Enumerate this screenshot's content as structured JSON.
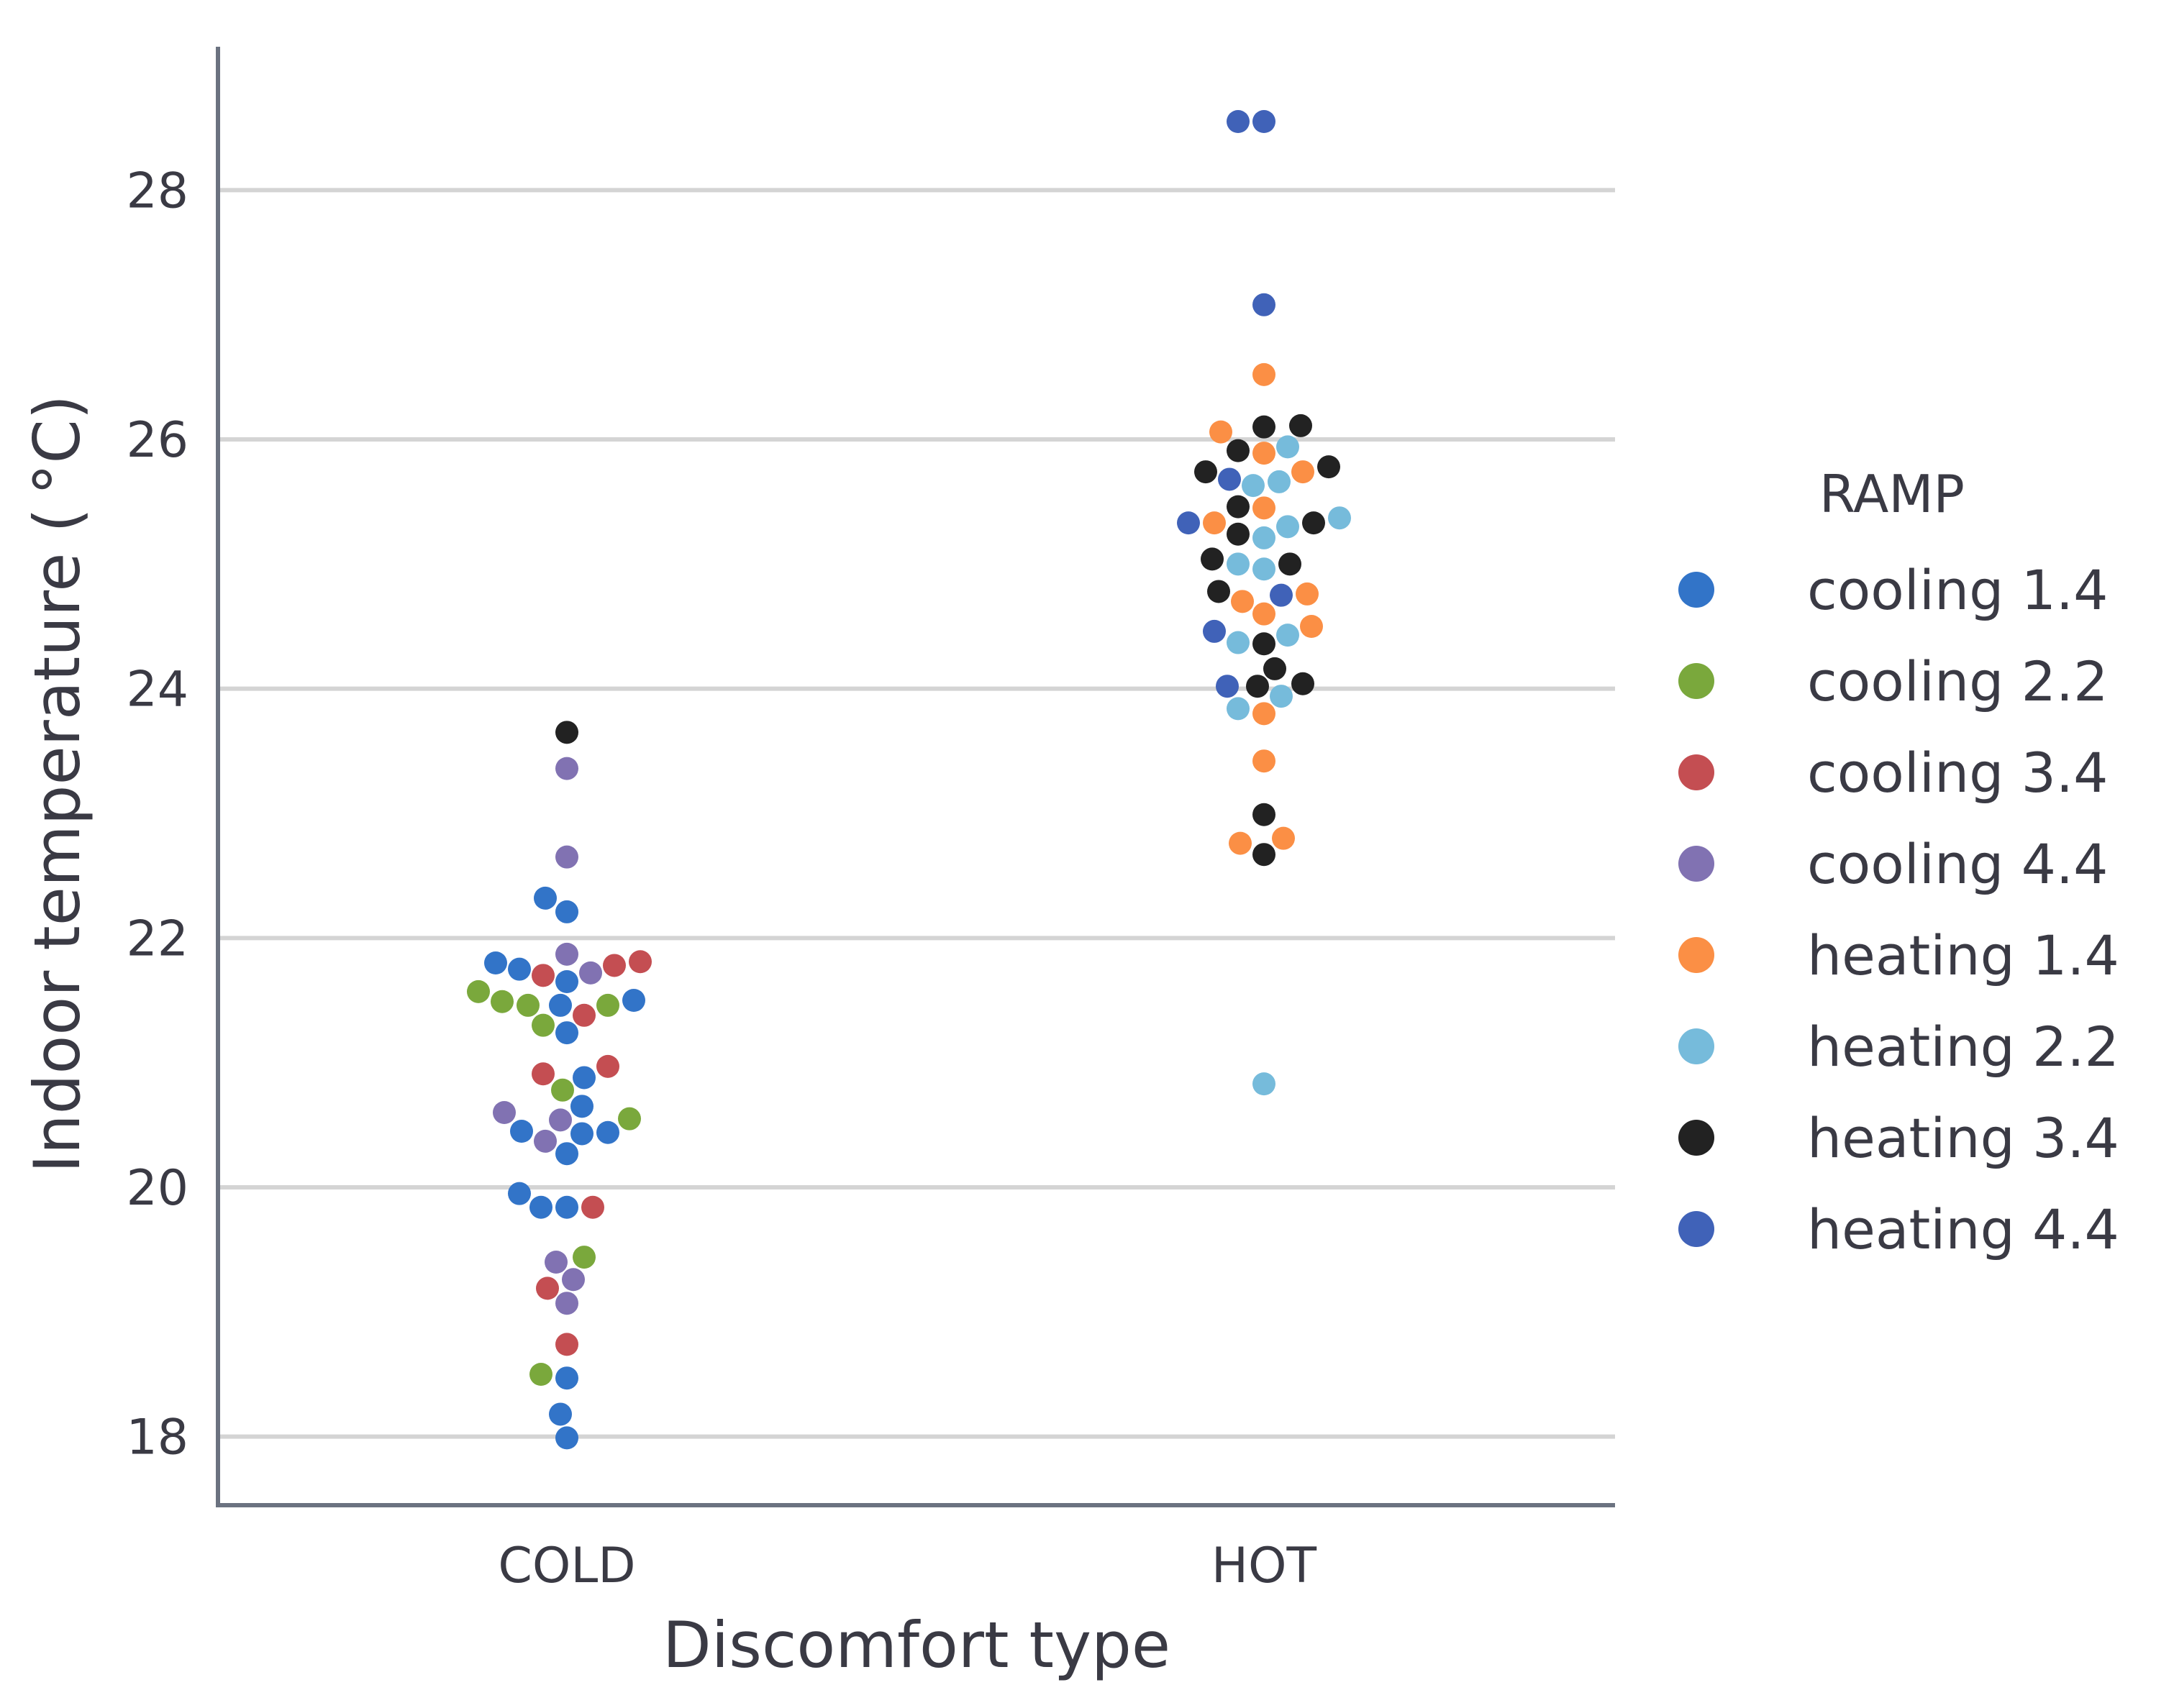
{
  "chart_data": {
    "type": "scatter",
    "subtype": "swarm",
    "title": "",
    "xlabel": "Discomfort type",
    "ylabel": "Indoor temperature ($^\\circ$C)",
    "ylabel_display": "Indoor temperature ( °C)",
    "categories": [
      "COLD",
      "HOT"
    ],
    "ylim": [
      17.45,
      29.15
    ],
    "yticks": [
      18,
      20,
      22,
      24,
      26,
      28
    ],
    "grid": "horizontal",
    "legend": {
      "title": "RAMP",
      "placement": "right"
    },
    "series": [
      {
        "name": "cooling 1.4",
        "color": "#3274c8",
        "points": {
          "COLD": [
            22.32,
            22.21,
            21.8,
            21.75,
            21.65,
            21.5,
            21.46,
            21.24,
            20.88,
            20.65,
            20.45,
            20.44,
            20.43,
            20.27,
            19.95,
            19.84,
            19.84,
            18.47,
            18.18,
            17.99
          ],
          "HOT": []
        }
      },
      {
        "name": "cooling 2.2",
        "color": "#7aa83c",
        "points": {
          "COLD": [
            21.57,
            21.49,
            21.46,
            21.46,
            21.3,
            20.78,
            20.55,
            19.44,
            18.5
          ],
          "HOT": []
        }
      },
      {
        "name": "cooling 3.4",
        "color": "#c44e52",
        "points": {
          "COLD": [
            21.81,
            21.78,
            21.7,
            21.38,
            20.97,
            20.91,
            19.84,
            19.19,
            18.74
          ],
          "HOT": []
        }
      },
      {
        "name": "cooling 4.4",
        "color": "#8172b2",
        "points": {
          "COLD": [
            23.36,
            22.65,
            21.87,
            21.72,
            20.6,
            20.54,
            20.37,
            19.4,
            19.26,
            19.07
          ],
          "HOT": []
        }
      },
      {
        "name": "heating 1.4",
        "color": "#fb8f45",
        "points": {
          "COLD": [],
          "HOT": [
            26.52,
            26.06,
            25.89,
            25.74,
            25.45,
            25.33,
            24.76,
            24.7,
            24.6,
            24.5,
            23.8,
            23.42,
            22.8,
            22.76
          ]
        }
      },
      {
        "name": "heating 2.2",
        "color": "#76bbdb",
        "points": {
          "COLD": [],
          "HOT": [
            25.94,
            25.66,
            25.63,
            25.37,
            25.3,
            25.21,
            25.0,
            24.96,
            24.43,
            24.37,
            23.94,
            23.84,
            20.83
          ]
        }
      },
      {
        "name": "heating 3.4",
        "color": "#222222",
        "points": {
          "COLD": [
            23.65
          ],
          "HOT": [
            26.11,
            26.1,
            25.91,
            25.78,
            25.74,
            25.46,
            25.33,
            25.24,
            25.04,
            25.0,
            24.78,
            24.36,
            24.16,
            24.04,
            24.02,
            22.99,
            22.67
          ]
        }
      },
      {
        "name": "heating 4.4",
        "color": "#4062b8",
        "points": {
          "COLD": [],
          "HOT": [
            28.55,
            28.55,
            27.08,
            25.68,
            25.33,
            24.75,
            24.46,
            24.02
          ]
        }
      }
    ]
  }
}
